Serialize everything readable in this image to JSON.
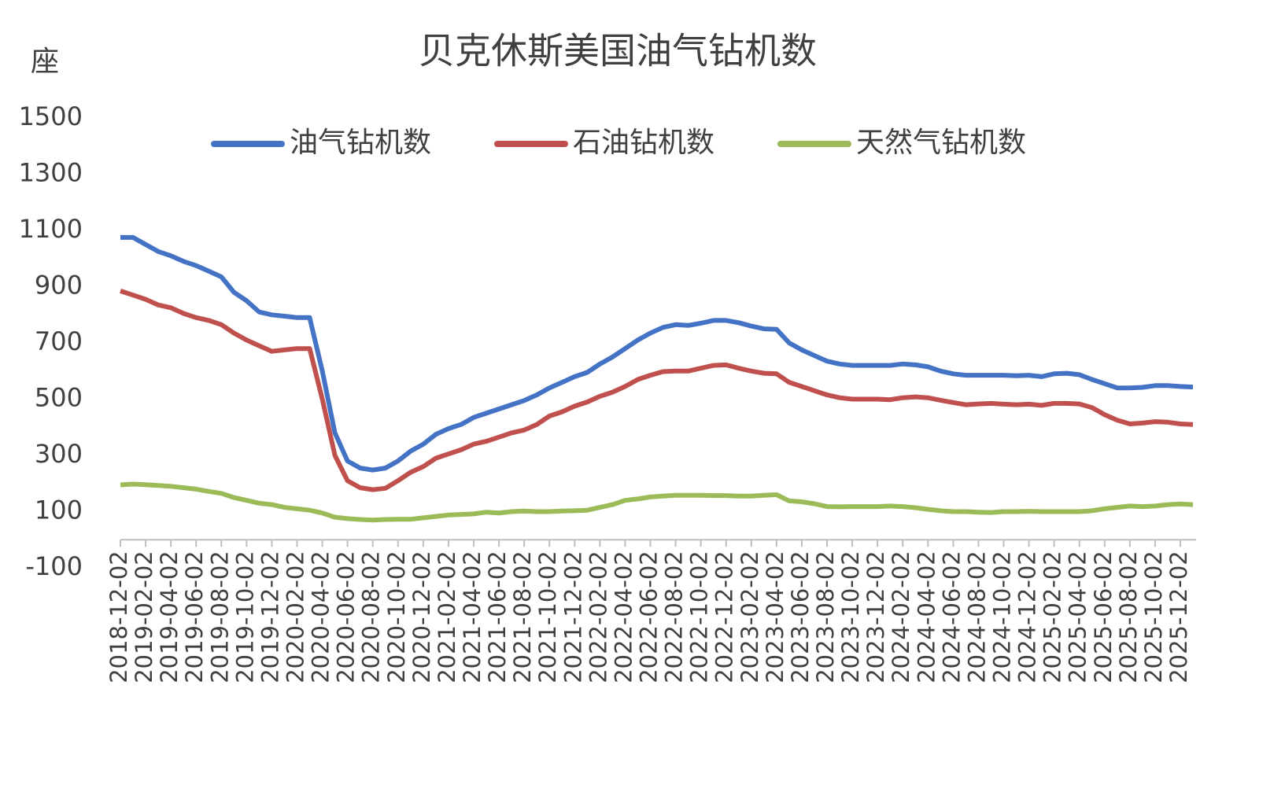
{
  "chart_data": {
    "type": "line",
    "title": "贝克休斯美国油气钻机数",
    "y_label": "座",
    "categories": [
      "2018-12-02",
      null,
      "2019-02-02",
      null,
      "2019-04-02",
      null,
      "2019-06-02",
      null,
      "2019-08-02",
      null,
      "2019-10-02",
      null,
      "2019-12-02",
      null,
      "2020-02-02",
      null,
      "2020-04-02",
      null,
      "2020-06-02",
      null,
      "2020-08-02",
      null,
      "2020-10-02",
      null,
      "2020-12-02",
      null,
      "2021-02-02",
      null,
      "2021-04-02",
      null,
      "2021-06-02",
      null,
      "2021-08-02",
      null,
      "2021-10-02",
      null,
      "2021-12-02",
      null,
      "2022-02-02",
      null,
      "2022-04-02",
      null,
      "2022-06-02",
      null,
      "2022-08-02",
      null,
      "2022-10-02",
      null,
      "2022-12-02",
      null,
      "2023-02-02",
      null,
      "2023-04-02",
      null,
      "2023-06-02",
      null,
      "2023-08-02",
      null,
      "2023-10-02",
      null,
      "2023-12-02",
      null,
      "2024-02-02",
      null,
      "2024-04-02",
      null,
      "2024-06-02",
      null,
      "2024-08-02",
      null,
      "2024-10-02",
      null,
      "2024-12-02",
      null,
      "2025-02-02",
      null,
      "2025-04-02",
      null,
      "2025-06-02",
      null,
      "2025-08-02",
      null,
      "2025-10-02",
      null,
      "2025-12-02",
      null
    ],
    "series": [
      {
        "name": "油气钻机数",
        "color": "#4472c4",
        "values": [
          1075,
          1075,
          1050,
          1025,
          1010,
          990,
          975,
          955,
          935,
          880,
          850,
          810,
          800,
          795,
          790,
          790,
          600,
          380,
          280,
          255,
          248,
          255,
          280,
          315,
          340,
          375,
          395,
          410,
          435,
          450,
          465,
          480,
          495,
          515,
          540,
          560,
          580,
          595,
          625,
          650,
          680,
          710,
          735,
          755,
          765,
          762,
          770,
          780,
          780,
          772,
          760,
          750,
          748,
          700,
          675,
          655,
          635,
          625,
          620,
          620,
          620,
          620,
          625,
          622,
          615,
          600,
          590,
          585,
          585,
          585,
          585,
          583,
          585,
          580,
          590,
          592,
          587,
          570,
          555,
          540,
          540,
          542,
          548,
          548,
          545,
          543
        ]
      },
      {
        "name": "石油钻机数",
        "color": "#c0504d",
        "values": [
          885,
          870,
          855,
          835,
          825,
          805,
          790,
          780,
          765,
          735,
          710,
          690,
          670,
          675,
          680,
          680,
          500,
          300,
          210,
          185,
          178,
          183,
          210,
          240,
          260,
          290,
          305,
          320,
          340,
          350,
          365,
          380,
          390,
          410,
          440,
          455,
          475,
          490,
          510,
          525,
          545,
          570,
          585,
          598,
          600,
          600,
          610,
          620,
          622,
          610,
          600,
          592,
          590,
          560,
          545,
          530,
          515,
          505,
          500,
          500,
          500,
          498,
          505,
          508,
          505,
          496,
          488,
          480,
          483,
          485,
          482,
          480,
          482,
          478,
          485,
          485,
          483,
          470,
          445,
          425,
          412,
          415,
          420,
          418,
          412,
          410
        ]
      },
      {
        "name": "天然气钻机数",
        "color": "#9bbb59",
        "values": [
          195,
          198,
          196,
          193,
          190,
          185,
          180,
          172,
          165,
          150,
          140,
          130,
          125,
          115,
          110,
          105,
          95,
          80,
          75,
          72,
          70,
          72,
          73,
          73,
          78,
          83,
          88,
          90,
          92,
          98,
          95,
          100,
          102,
          100,
          100,
          102,
          103,
          105,
          115,
          125,
          140,
          145,
          152,
          155,
          158,
          158,
          158,
          157,
          157,
          155,
          155,
          158,
          160,
          138,
          135,
          128,
          118,
          117,
          118,
          118,
          118,
          120,
          118,
          114,
          108,
          103,
          100,
          100,
          98,
          97,
          100,
          100,
          101,
          100,
          100,
          100,
          100,
          103,
          110,
          115,
          120,
          118,
          120,
          125,
          127,
          125
        ]
      }
    ],
    "ylim": [
      -100,
      1500
    ],
    "yticks": [
      -100,
      100,
      300,
      500,
      700,
      900,
      1100,
      1300,
      1500
    ]
  }
}
